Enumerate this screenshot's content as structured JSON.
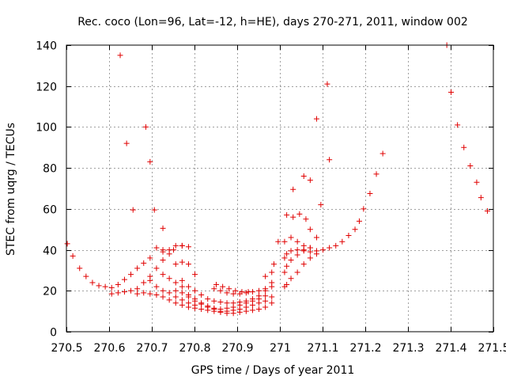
{
  "chart_data": {
    "type": "scatter",
    "title": "Rec. coco (Lon=96, Lat=-12, h=HE), days 270-271, 2011, window 002",
    "xlabel": "GPS time / Days of year 2011",
    "ylabel": "STEC from uqrg / TECUs",
    "xlim": [
      270.5,
      271.5
    ],
    "ylim": [
      0,
      140
    ],
    "xticks": [
      "270.5",
      "270.6",
      "270.7",
      "270.8",
      "270.9",
      "271",
      "271.1",
      "271.2",
      "271.3",
      "271.4",
      "271.5"
    ],
    "yticks": [
      "0",
      "20",
      "40",
      "60",
      "80",
      "100",
      "120",
      "140"
    ],
    "grid": true,
    "marker": "+",
    "color": "#e00000",
    "series": [
      {
        "points": [
          [
            270.502,
            43
          ],
          [
            270.515,
            37
          ],
          [
            270.531,
            31
          ],
          [
            270.546,
            27
          ],
          [
            270.561,
            24
          ],
          [
            270.576,
            22.5
          ],
          [
            270.591,
            22
          ],
          [
            270.606,
            21.5
          ],
          [
            270.621,
            23
          ],
          [
            270.636,
            25.5
          ],
          [
            270.651,
            28
          ],
          [
            270.666,
            31
          ],
          [
            270.681,
            33.5
          ],
          [
            270.696,
            36
          ],
          [
            270.711,
            41
          ],
          [
            270.726,
            39
          ],
          [
            270.741,
            40
          ],
          [
            270.756,
            42
          ],
          [
            270.771,
            42
          ],
          [
            270.786,
            41.5
          ],
          [
            270.606,
            18.5
          ],
          [
            270.621,
            19
          ],
          [
            270.636,
            19.5
          ],
          [
            270.651,
            20
          ],
          [
            270.666,
            18.5
          ],
          [
            270.681,
            19
          ],
          [
            270.696,
            18.5
          ],
          [
            270.711,
            18
          ],
          [
            270.726,
            17
          ],
          [
            270.741,
            15.5
          ],
          [
            270.756,
            14
          ],
          [
            270.771,
            13
          ],
          [
            270.786,
            12
          ],
          [
            270.801,
            11.5
          ],
          [
            270.816,
            11
          ],
          [
            270.831,
            10.5
          ],
          [
            270.846,
            10
          ],
          [
            270.861,
            9.5
          ],
          [
            270.876,
            9
          ],
          [
            270.891,
            9
          ],
          [
            270.906,
            9.5
          ],
          [
            270.921,
            10
          ],
          [
            270.936,
            10.5
          ],
          [
            270.951,
            11
          ],
          [
            270.966,
            12
          ],
          [
            270.981,
            14
          ],
          [
            270.666,
            21
          ],
          [
            270.681,
            24
          ],
          [
            270.696,
            27
          ],
          [
            270.711,
            31
          ],
          [
            270.726,
            35
          ],
          [
            270.741,
            38
          ],
          [
            270.756,
            33
          ],
          [
            270.771,
            34
          ],
          [
            270.696,
            25
          ],
          [
            270.711,
            22
          ],
          [
            270.726,
            20
          ],
          [
            270.741,
            19
          ],
          [
            270.756,
            17
          ],
          [
            270.771,
            15.5
          ],
          [
            270.786,
            14
          ],
          [
            270.801,
            13
          ],
          [
            270.726,
            28
          ],
          [
            270.741,
            26
          ],
          [
            270.756,
            24
          ],
          [
            270.771,
            22
          ],
          [
            270.786,
            18
          ],
          [
            270.801,
            16
          ],
          [
            270.816,
            14
          ],
          [
            270.831,
            12.5
          ],
          [
            270.846,
            11
          ],
          [
            270.861,
            10
          ],
          [
            270.876,
            10
          ],
          [
            270.891,
            10.5
          ],
          [
            270.906,
            11
          ],
          [
            270.921,
            12
          ],
          [
            270.936,
            13
          ],
          [
            270.951,
            14
          ],
          [
            270.966,
            15
          ],
          [
            270.981,
            17
          ],
          [
            270.756,
            20
          ],
          [
            270.771,
            19
          ],
          [
            270.786,
            17
          ],
          [
            270.801,
            15
          ],
          [
            270.816,
            13.5
          ],
          [
            270.831,
            12
          ],
          [
            270.846,
            11.5
          ],
          [
            270.861,
            11
          ],
          [
            270.876,
            11.5
          ],
          [
            270.891,
            12
          ],
          [
            270.906,
            13
          ],
          [
            270.921,
            14
          ],
          [
            270.936,
            15
          ],
          [
            270.951,
            16
          ],
          [
            270.966,
            17.5
          ],
          [
            270.771,
            25
          ],
          [
            270.786,
            22
          ],
          [
            270.801,
            20
          ],
          [
            270.816,
            18
          ],
          [
            270.831,
            16
          ],
          [
            270.846,
            15
          ],
          [
            270.861,
            14.5
          ],
          [
            270.876,
            14
          ],
          [
            270.891,
            14
          ],
          [
            270.906,
            14.5
          ],
          [
            270.921,
            15
          ],
          [
            270.936,
            16
          ],
          [
            270.951,
            17.5
          ],
          [
            270.966,
            20
          ],
          [
            270.981,
            22
          ],
          [
            270.846,
            21
          ],
          [
            270.861,
            20
          ],
          [
            270.876,
            19
          ],
          [
            270.891,
            18.5
          ],
          [
            270.906,
            18.5
          ],
          [
            270.921,
            19
          ],
          [
            270.936,
            19.5
          ],
          [
            270.951,
            20
          ],
          [
            270.966,
            21
          ],
          [
            270.981,
            24
          ],
          [
            270.851,
            23
          ],
          [
            270.866,
            22
          ],
          [
            270.881,
            21
          ],
          [
            270.896,
            20
          ],
          [
            270.911,
            19.5
          ],
          [
            270.926,
            19.5
          ],
          [
            270.966,
            27
          ],
          [
            270.981,
            29
          ],
          [
            270.986,
            33
          ],
          [
            270.996,
            44
          ],
          [
            271.011,
            36
          ],
          [
            271.016,
            38
          ],
          [
            271.026,
            39.5
          ],
          [
            271.041,
            40
          ],
          [
            271.056,
            39.5
          ],
          [
            271.071,
            39
          ],
          [
            271.086,
            39.5
          ],
          [
            271.101,
            40
          ],
          [
            271.116,
            41
          ],
          [
            271.131,
            42
          ],
          [
            271.146,
            44
          ],
          [
            271.161,
            47
          ],
          [
            271.176,
            50
          ],
          [
            271.186,
            54
          ],
          [
            271.196,
            60
          ],
          [
            271.211,
            67.5
          ],
          [
            271.226,
            77
          ],
          [
            271.241,
            87
          ],
          [
            271.011,
            22
          ],
          [
            271.016,
            23
          ],
          [
            271.026,
            26
          ],
          [
            271.041,
            29
          ],
          [
            271.056,
            33
          ],
          [
            271.071,
            36
          ],
          [
            271.086,
            38
          ],
          [
            271.011,
            29
          ],
          [
            271.016,
            32
          ],
          [
            271.026,
            35
          ],
          [
            271.041,
            37.5
          ],
          [
            271.056,
            40
          ],
          [
            271.071,
            41
          ],
          [
            271.011,
            44
          ],
          [
            271.026,
            46
          ],
          [
            271.041,
            44
          ],
          [
            271.056,
            42
          ],
          [
            271.071,
            41
          ],
          [
            271.016,
            57
          ],
          [
            271.031,
            56
          ],
          [
            271.046,
            57.5
          ],
          [
            271.061,
            55
          ],
          [
            271.071,
            50
          ],
          [
            271.086,
            46
          ],
          [
            271.031,
            69.5
          ],
          [
            271.056,
            76
          ],
          [
            271.071,
            74
          ],
          [
            271.096,
            62
          ],
          [
            271.116,
            84
          ],
          [
            271.086,
            104
          ],
          [
            271.111,
            121
          ],
          [
            270.626,
            135
          ],
          [
            270.641,
            92
          ],
          [
            270.656,
            59.5
          ],
          [
            270.686,
            100
          ],
          [
            270.696,
            83
          ],
          [
            270.706,
            59.5
          ],
          [
            270.726,
            50.5
          ],
          [
            270.726,
            40
          ],
          [
            270.751,
            40
          ],
          [
            270.771,
            42
          ],
          [
            270.786,
            33
          ],
          [
            270.801,
            28
          ],
          [
            271.391,
            140
          ],
          [
            271.401,
            117
          ],
          [
            271.416,
            101
          ],
          [
            271.431,
            90
          ],
          [
            271.446,
            81
          ],
          [
            271.461,
            73
          ],
          [
            271.471,
            65.5
          ],
          [
            271.486,
            59
          ]
        ]
      }
    ]
  }
}
